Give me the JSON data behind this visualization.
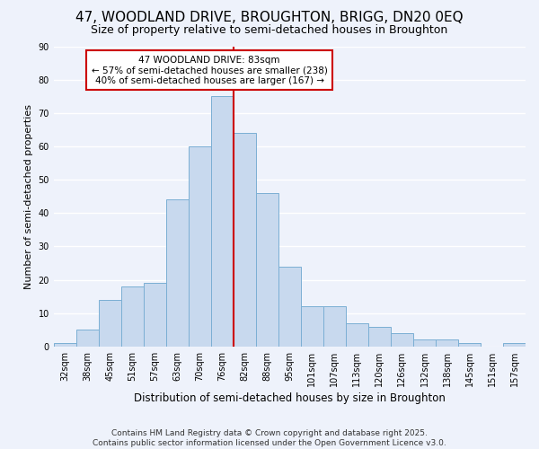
{
  "title": "47, WOODLAND DRIVE, BROUGHTON, BRIGG, DN20 0EQ",
  "subtitle": "Size of property relative to semi-detached houses in Broughton",
  "xlabel": "Distribution of semi-detached houses by size in Broughton",
  "ylabel": "Number of semi-detached properties",
  "bin_labels": [
    "32sqm",
    "38sqm",
    "45sqm",
    "51sqm",
    "57sqm",
    "63sqm",
    "70sqm",
    "76sqm",
    "82sqm",
    "88sqm",
    "95sqm",
    "101sqm",
    "107sqm",
    "113sqm",
    "120sqm",
    "126sqm",
    "132sqm",
    "138sqm",
    "145sqm",
    "151sqm",
    "157sqm"
  ],
  "bar_heights": [
    1,
    5,
    14,
    18,
    19,
    44,
    60,
    75,
    64,
    46,
    24,
    12,
    12,
    7,
    6,
    4,
    2,
    2,
    1,
    0,
    1
  ],
  "bar_color": "#c8d9ee",
  "bar_edge_color": "#7bafd4",
  "highlight_line_index": 7,
  "highlight_line_color": "#cc0000",
  "ylim": [
    0,
    90
  ],
  "yticks": [
    0,
    10,
    20,
    30,
    40,
    50,
    60,
    70,
    80,
    90
  ],
  "annotation_title": "47 WOODLAND DRIVE: 83sqm",
  "annotation_line1": "← 57% of semi-detached houses are smaller (238)",
  "annotation_line2": "40% of semi-detached houses are larger (167) →",
  "annotation_box_facecolor": "#ffffff",
  "annotation_box_edgecolor": "#cc0000",
  "footer_line1": "Contains HM Land Registry data © Crown copyright and database right 2025.",
  "footer_line2": "Contains public sector information licensed under the Open Government Licence v3.0.",
  "background_color": "#eef2fb",
  "grid_color": "#ffffff",
  "title_fontsize": 11,
  "subtitle_fontsize": 9,
  "xlabel_fontsize": 8.5,
  "ylabel_fontsize": 8,
  "tick_fontsize": 7,
  "annotation_fontsize": 7.5,
  "footer_fontsize": 6.5
}
